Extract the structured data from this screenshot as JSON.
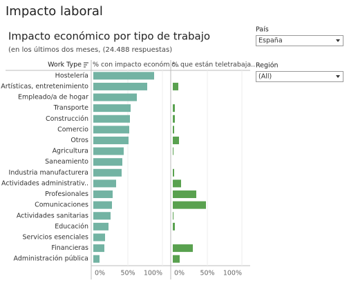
{
  "header": {
    "title": "Impacto laboral",
    "subtitle": "Impacto económico por tipo de trabajo",
    "note": "(en los últimos dos meses, (24.488 respuestas)"
  },
  "filters": [
    {
      "label": "País",
      "value": "España"
    },
    {
      "label": "Región",
      "value": "(All)"
    }
  ],
  "chart_data": {
    "type": "bar",
    "orientation": "horizontal",
    "category_label": "Work Type",
    "categories": [
      "Hostelería",
      "Artísticas, entretenimiento",
      "Empleado/a de hogar",
      "Transporte",
      "Construcción",
      "Comercio",
      "Otros",
      "Agricultura",
      "Saneamiento",
      "Industria manufacturera",
      "Actividades administrativ..",
      "Profesionales",
      "Comunicaciones",
      "Actividades sanitarias",
      "Educación",
      "Servicios esenciales",
      "Financieras",
      "Administración pública"
    ],
    "series": [
      {
        "name": "% con impacto económic..",
        "color": "#73b3a3",
        "values": [
          88,
          78,
          63,
          54,
          53,
          52,
          51,
          44,
          42,
          41,
          33,
          28,
          27,
          25,
          22,
          17,
          16,
          9
        ]
      },
      {
        "name": "% que están teletrabaja..",
        "color": "#59a14f",
        "values": [
          0,
          8,
          0,
          3,
          3,
          2,
          9,
          1,
          0,
          2,
          12,
          34,
          48,
          1,
          3,
          0,
          29,
          10
        ]
      }
    ],
    "xlim": [
      0,
      100
    ],
    "xticks": [
      {
        "value": 0,
        "label": "0%"
      },
      {
        "value": 50,
        "label": "50%"
      },
      {
        "value": 100,
        "label": "100%"
      }
    ],
    "grid": true
  }
}
